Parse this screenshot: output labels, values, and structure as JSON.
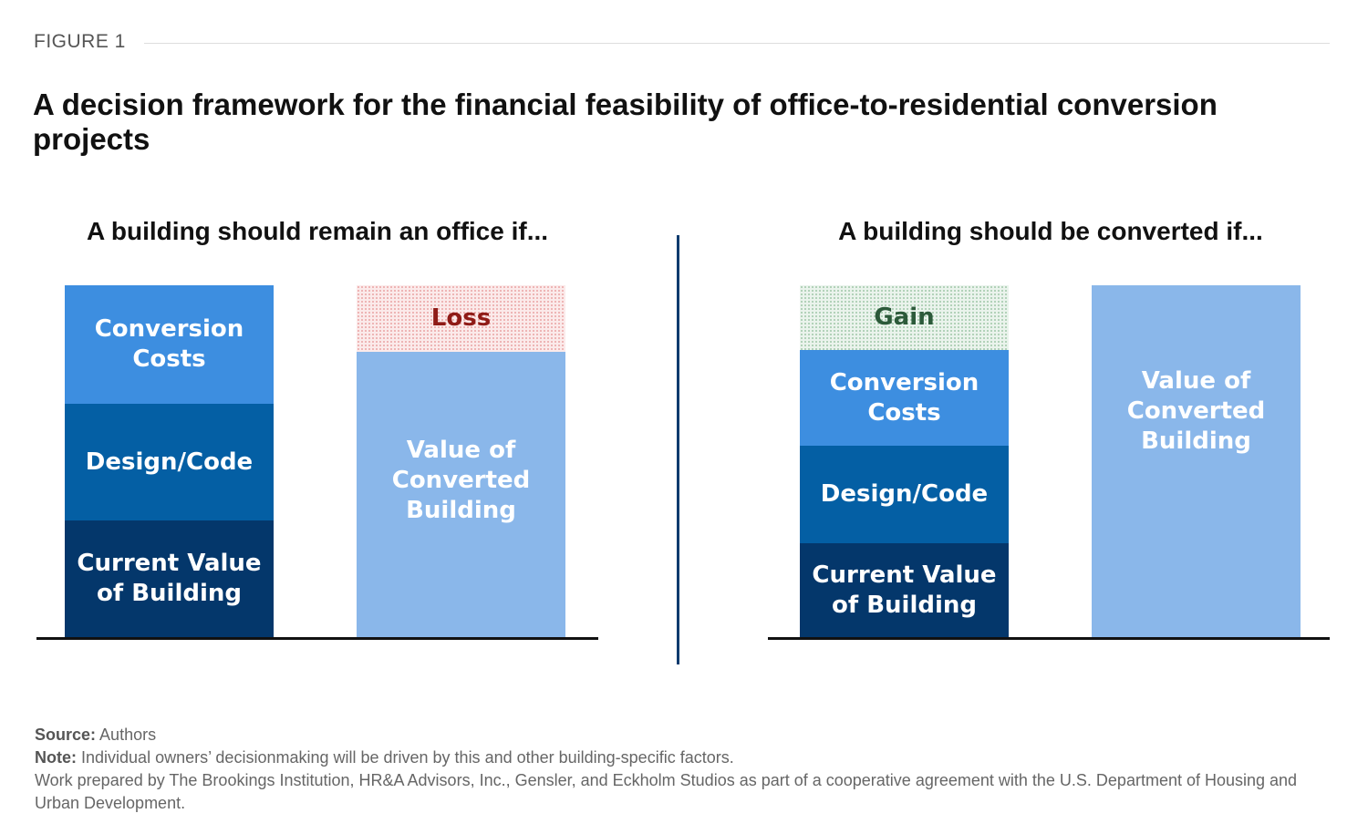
{
  "figure_label": "FIGURE 1",
  "title": "A decision framework for the financial feasibility of office-to-residential conversion projects",
  "left_panel": {
    "heading": "A building should remain an office if...",
    "stack_segments": [
      "Conversion Costs",
      "Design/Code",
      "Current Value of Building"
    ],
    "value_bar": {
      "top_label": "Loss",
      "label": "Value of Converted Building"
    }
  },
  "right_panel": {
    "heading": "A building should be converted if...",
    "stack_segments": [
      "Gain",
      "Conversion Costs",
      "Design/Code",
      "Current Value of Building"
    ],
    "value_bar": {
      "label": "Value of Converted Building"
    }
  },
  "footer": {
    "source_label": "Source:",
    "source_text": "Authors",
    "note_label": "Note:",
    "note_text": "Individual owners’ decisionmaking will be driven by this and other building-specific factors.",
    "credit": "Work prepared by The Brookings Institution, HR&A Advisors, Inc., Gensler, and Eckholm Studios as part of a cooperative agreement with the U.S. Department of Housing and Urban Development."
  },
  "colors": {
    "conversion_costs": "#3d8ee0",
    "design_code": "#045fa4",
    "current_value": "#04376b",
    "converted_value": "#8ab7ea",
    "loss_text": "#8f1b17",
    "gain_text": "#2c5a3a",
    "divider": "#0d3b6e"
  }
}
